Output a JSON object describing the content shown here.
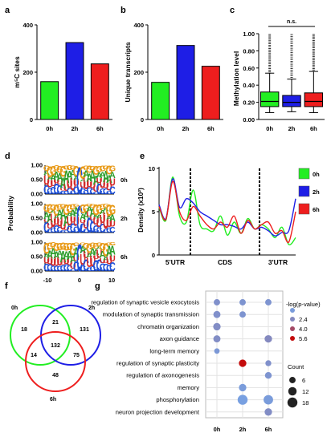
{
  "chart_data": [
    {
      "panel": "a",
      "type": "bar",
      "categories": [
        "0h",
        "2h",
        "6h"
      ],
      "values": [
        160,
        325,
        235
      ],
      "colors": [
        "#22ee22",
        "#1e1ee6",
        "#ee1e1e"
      ],
      "ylabel": "m⁵C sites",
      "ylim": [
        0,
        400
      ],
      "yticks": [
        "0",
        "200",
        "400"
      ]
    },
    {
      "panel": "b",
      "type": "bar",
      "categories": [
        "0h",
        "2h",
        "6h"
      ],
      "values": [
        157,
        313,
        225
      ],
      "colors": [
        "#22ee22",
        "#1e1ee6",
        "#ee1e1e"
      ],
      "ylabel": "Unique transcripts",
      "ylim": [
        0,
        400
      ],
      "yticks": [
        "0",
        "200",
        "400"
      ]
    },
    {
      "panel": "c",
      "type": "box",
      "categories": [
        "0h",
        "2h",
        "6h"
      ],
      "boxes": [
        {
          "whisker_low": 0.08,
          "q1": 0.15,
          "median": 0.21,
          "q3": 0.32,
          "whisker_high": 0.54
        },
        {
          "whisker_low": 0.09,
          "q1": 0.15,
          "median": 0.2,
          "q3": 0.28,
          "whisker_high": 0.47
        },
        {
          "whisker_low": 0.08,
          "q1": 0.15,
          "median": 0.21,
          "q3": 0.31,
          "whisker_high": 0.56
        }
      ],
      "colors": [
        "#22ee22",
        "#1e1ee6",
        "#ee1e1e"
      ],
      "ylabel": "Methylation level",
      "ylim": [
        0,
        1
      ],
      "yticks": [
        "0.00",
        "0.20",
        "0.40",
        "0.60",
        "0.80",
        "1.00"
      ],
      "annotation": "n.s."
    },
    {
      "panel": "d",
      "type": "sequence-logo",
      "rows": [
        "0h",
        "2h",
        "6h"
      ],
      "ylabel": "Probability",
      "yticks": [
        "1.00",
        "0.50",
        "0.00"
      ],
      "xticks": [
        "-10",
        "0",
        "10"
      ]
    },
    {
      "panel": "e",
      "type": "line",
      "ylabel": "Density (x10²)",
      "yticks": [
        "10",
        "5",
        "0"
      ],
      "ylim": [
        0,
        10
      ],
      "regions": [
        "5'UTR",
        "CDS",
        "3'UTR"
      ],
      "x": [
        0,
        5,
        10,
        15,
        20,
        25,
        30,
        35,
        40,
        45,
        50,
        55,
        60,
        65,
        70,
        75,
        80,
        85,
        90,
        95,
        100
      ],
      "series": [
        {
          "name": "0h",
          "color": "#22ee22",
          "values": [
            5.5,
            4.0,
            9.0,
            4.5,
            3.8,
            7.5,
            3.5,
            3.0,
            2.8,
            4.5,
            2.3,
            3.8,
            2.5,
            4.2,
            3.0,
            3.5,
            3.0,
            2.0,
            3.2,
            1.2,
            2.0
          ]
        },
        {
          "name": "2h",
          "color": "#1e1ee6",
          "values": [
            5.8,
            4.2,
            8.8,
            5.5,
            6.5,
            6.0,
            5.0,
            4.5,
            4.0,
            3.5,
            3.5,
            3.3,
            3.0,
            3.8,
            3.0,
            3.2,
            2.8,
            2.2,
            2.6,
            2.8,
            6.5
          ]
        },
        {
          "name": "6h",
          "color": "#ee1e1e",
          "values": [
            5.6,
            4.1,
            8.5,
            5.0,
            4.0,
            5.6,
            4.5,
            3.5,
            3.0,
            3.8,
            3.2,
            4.5,
            2.5,
            4.0,
            3.0,
            3.5,
            3.8,
            2.5,
            2.8,
            1.5,
            5.0
          ]
        }
      ],
      "legend": [
        "0h",
        "2h",
        "6h"
      ]
    },
    {
      "panel": "f",
      "type": "venn",
      "sets": [
        "0h",
        "2h",
        "6h"
      ],
      "colors": [
        "#22ee22",
        "#1e1ee6",
        "#ee1e1e"
      ],
      "regions": {
        "0h_only": "18",
        "2h_only": "131",
        "6h_only": "48",
        "0h_2h": "21",
        "0h_6h": "14",
        "2h_6h": "75",
        "all": "132"
      }
    },
    {
      "panel": "g",
      "type": "dot",
      "categories": [
        "0h",
        "2h",
        "6h"
      ],
      "terms": [
        "regulation of synaptic vesicle exocytosis",
        "modulation of synaptic transmission",
        "chromatin organization",
        "axon guidance",
        "long-term memory",
        "regulation of synaptic plasticity",
        "regulation of axonogenesis",
        "memory",
        "phosphorylation",
        "neuron projection development"
      ],
      "points": [
        {
          "term": 0,
          "cat": 0,
          "count": 6,
          "logp": 2.2
        },
        {
          "term": 0,
          "cat": 1,
          "count": 6,
          "logp": 2.1
        },
        {
          "term": 0,
          "cat": 2,
          "count": 6,
          "logp": 2.1
        },
        {
          "term": 1,
          "cat": 0,
          "count": 8,
          "logp": 2.2
        },
        {
          "term": 1,
          "cat": 1,
          "count": 6,
          "logp": 2.1
        },
        {
          "term": 2,
          "cat": 0,
          "count": 9,
          "logp": 2.3
        },
        {
          "term": 3,
          "cat": 0,
          "count": 8,
          "logp": 2.3
        },
        {
          "term": 3,
          "cat": 2,
          "count": 9,
          "logp": 2.4
        },
        {
          "term": 4,
          "cat": 0,
          "count": 4,
          "logp": 2.0
        },
        {
          "term": 5,
          "cat": 1,
          "count": 9,
          "logp": 5.6
        },
        {
          "term": 5,
          "cat": 2,
          "count": 5,
          "logp": 2.2
        },
        {
          "term": 6,
          "cat": 2,
          "count": 7,
          "logp": 2.1
        },
        {
          "term": 7,
          "cat": 1,
          "count": 9,
          "logp": 1.9
        },
        {
          "term": 8,
          "cat": 1,
          "count": 18,
          "logp": 1.8
        },
        {
          "term": 8,
          "cat": 2,
          "count": 16,
          "logp": 1.9
        },
        {
          "term": 9,
          "cat": 2,
          "count": 9,
          "logp": 2.3
        }
      ],
      "legend_color_title": "-log(p-value)",
      "legend_color_values": [
        "2.4",
        "4.0",
        "5.6"
      ],
      "legend_size_title": "Count",
      "legend_size_values": [
        "6",
        "12",
        "18"
      ]
    }
  ]
}
